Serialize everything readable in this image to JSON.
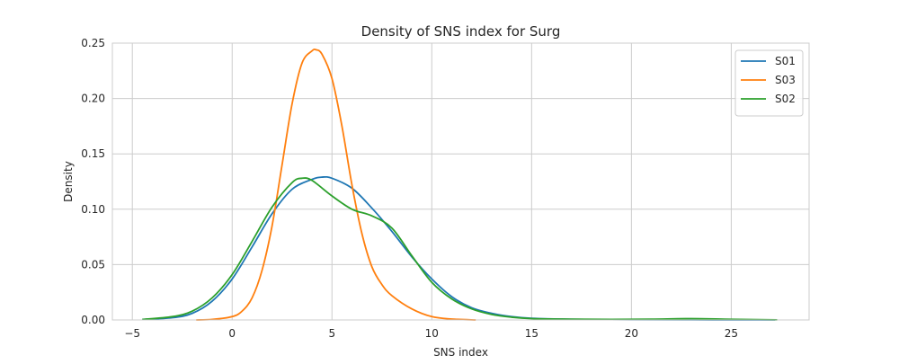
{
  "chart_data": {
    "type": "line",
    "title": "Density of SNS index for Surg",
    "xlabel": "SNS index",
    "ylabel": "Density",
    "xlim": [
      -6,
      28.9
    ],
    "ylim": [
      0,
      0.25
    ],
    "xticks": [
      -5,
      0,
      5,
      10,
      15,
      20,
      25
    ],
    "xtick_labels": [
      "−5",
      "0",
      "5",
      "10",
      "15",
      "20",
      "25"
    ],
    "yticks": [
      0,
      0.05,
      0.1,
      0.15,
      0.2,
      0.25
    ],
    "ytick_labels": [
      "0.00",
      "0.05",
      "0.10",
      "0.15",
      "0.20",
      "0.25"
    ],
    "grid": true,
    "legend_position": "top-right",
    "series": [
      {
        "name": "S01",
        "color": "#1f77b4",
        "x": [
          -4.5,
          -3,
          -2,
          -1,
          0,
          1,
          2,
          3,
          4,
          4.5,
          5,
          6,
          7,
          8,
          9,
          10,
          11,
          12,
          13,
          14,
          15,
          17,
          20,
          23,
          26,
          27.2
        ],
        "y": [
          0.0005,
          0.002,
          0.006,
          0.017,
          0.037,
          0.066,
          0.096,
          0.118,
          0.127,
          0.129,
          0.128,
          0.119,
          0.101,
          0.08,
          0.057,
          0.037,
          0.021,
          0.011,
          0.006,
          0.003,
          0.0015,
          0.0006,
          0.0002,
          0.0001,
          0.0,
          0.0
        ]
      },
      {
        "name": "S03",
        "color": "#ff7f0e",
        "x": [
          -1.8,
          -1,
          0,
          0.5,
          1,
          1.5,
          2,
          2.5,
          3,
          3.5,
          4,
          4.2,
          4.5,
          5,
          5.5,
          6,
          6.5,
          7,
          7.5,
          8,
          9,
          10,
          11,
          12.2
        ],
        "y": [
          0.0,
          0.0005,
          0.003,
          0.008,
          0.02,
          0.045,
          0.085,
          0.14,
          0.195,
          0.232,
          0.243,
          0.244,
          0.24,
          0.218,
          0.175,
          0.122,
          0.078,
          0.048,
          0.032,
          0.022,
          0.01,
          0.003,
          0.0008,
          0.0
        ]
      },
      {
        "name": "S02",
        "color": "#2ca02c",
        "x": [
          -4.5,
          -3,
          -2,
          -1,
          0,
          1,
          2,
          3,
          3.5,
          4,
          5,
          6,
          7,
          8,
          9,
          10,
          11,
          12,
          13,
          14,
          15,
          17,
          19,
          21,
          23,
          25,
          27.3
        ],
        "y": [
          0.0005,
          0.003,
          0.008,
          0.02,
          0.041,
          0.071,
          0.102,
          0.124,
          0.128,
          0.126,
          0.112,
          0.1,
          0.094,
          0.083,
          0.058,
          0.034,
          0.019,
          0.01,
          0.005,
          0.0025,
          0.0012,
          0.0007,
          0.0005,
          0.0007,
          0.0012,
          0.0006,
          0.0001
        ]
      }
    ]
  }
}
